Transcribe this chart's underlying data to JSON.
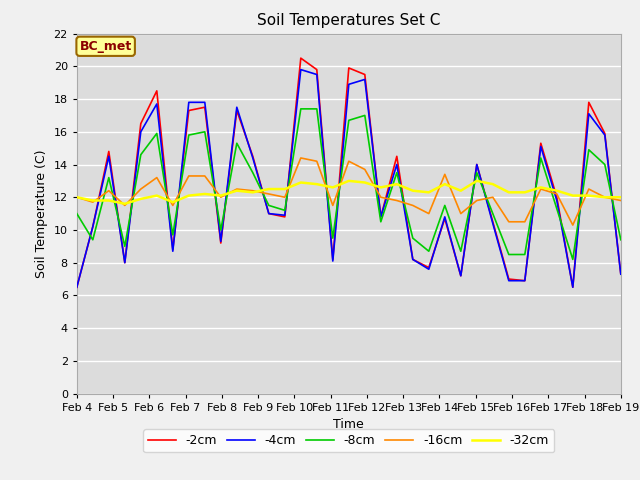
{
  "title": "Soil Temperatures Set C",
  "xlabel": "Time",
  "ylabel": "Soil Temperature (C)",
  "ylim": [
    0,
    22
  ],
  "yticks": [
    0,
    2,
    4,
    6,
    8,
    10,
    12,
    14,
    16,
    18,
    20,
    22
  ],
  "bg_color": "#dcdcdc",
  "fig_color": "#f0f0f0",
  "annotation": "BC_met",
  "series": {
    "-2cm": {
      "color": "#ff0000",
      "lw": 1.2
    },
    "-4cm": {
      "color": "#0000ff",
      "lw": 1.2
    },
    "-8cm": {
      "color": "#00cc00",
      "lw": 1.2
    },
    "-16cm": {
      "color": "#ff8800",
      "lw": 1.2
    },
    "-32cm": {
      "color": "#ffff00",
      "lw": 1.8
    }
  },
  "x_labels": [
    "Feb 4",
    "Feb 5",
    "Feb 6",
    "Feb 7",
    "Feb 8",
    "Feb 9",
    "Feb 10",
    "Feb 11",
    "Feb 12",
    "Feb 13",
    "Feb 14",
    "Feb 15",
    "Feb 16",
    "Feb 17",
    "Feb 18",
    "Feb 19"
  ],
  "neg2cm": [
    6.5,
    10.2,
    14.8,
    8.0,
    16.5,
    18.5,
    8.8,
    17.3,
    17.5,
    9.2,
    17.3,
    14.5,
    11.0,
    10.8,
    20.5,
    19.8,
    8.2,
    19.9,
    19.5,
    10.8,
    14.5,
    8.2,
    7.7,
    10.7,
    7.2,
    14.0,
    10.5,
    7.0,
    6.9,
    15.3,
    12.0,
    6.5,
    17.8,
    15.9,
    7.3
  ],
  "neg4cm": [
    6.5,
    10.2,
    14.5,
    8.0,
    16.0,
    17.7,
    8.7,
    17.8,
    17.8,
    9.3,
    17.5,
    14.4,
    11.0,
    10.9,
    19.8,
    19.5,
    8.1,
    18.9,
    19.2,
    10.8,
    14.0,
    8.2,
    7.6,
    10.8,
    7.2,
    14.0,
    10.4,
    6.9,
    6.9,
    15.1,
    11.8,
    6.5,
    17.1,
    15.8,
    7.3
  ],
  "neg8cm": [
    11.0,
    9.4,
    13.2,
    9.0,
    14.6,
    15.9,
    9.7,
    15.8,
    16.0,
    10.0,
    15.3,
    13.5,
    11.5,
    11.2,
    17.4,
    17.4,
    9.5,
    16.7,
    17.0,
    10.5,
    13.5,
    9.5,
    8.7,
    11.5,
    8.7,
    13.5,
    11.0,
    8.5,
    8.5,
    14.4,
    11.3,
    8.2,
    14.9,
    14.0,
    9.4
  ],
  "neg16cm": [
    12.0,
    11.7,
    12.4,
    11.5,
    12.5,
    13.2,
    11.5,
    13.3,
    13.3,
    12.0,
    12.5,
    12.4,
    12.2,
    12.0,
    14.4,
    14.2,
    11.5,
    14.2,
    13.7,
    12.0,
    11.8,
    11.5,
    11.0,
    13.4,
    11.0,
    11.8,
    12.0,
    10.5,
    10.5,
    12.5,
    12.2,
    10.3,
    12.5,
    12.0,
    11.8
  ],
  "neg32cm": [
    12.0,
    11.8,
    11.8,
    11.6,
    11.9,
    12.1,
    11.7,
    12.1,
    12.2,
    12.1,
    12.4,
    12.3,
    12.5,
    12.5,
    12.9,
    12.8,
    12.6,
    13.0,
    12.9,
    12.6,
    12.8,
    12.4,
    12.3,
    12.8,
    12.4,
    13.0,
    12.8,
    12.3,
    12.3,
    12.6,
    12.4,
    12.1,
    12.1,
    12.0,
    12.0
  ]
}
